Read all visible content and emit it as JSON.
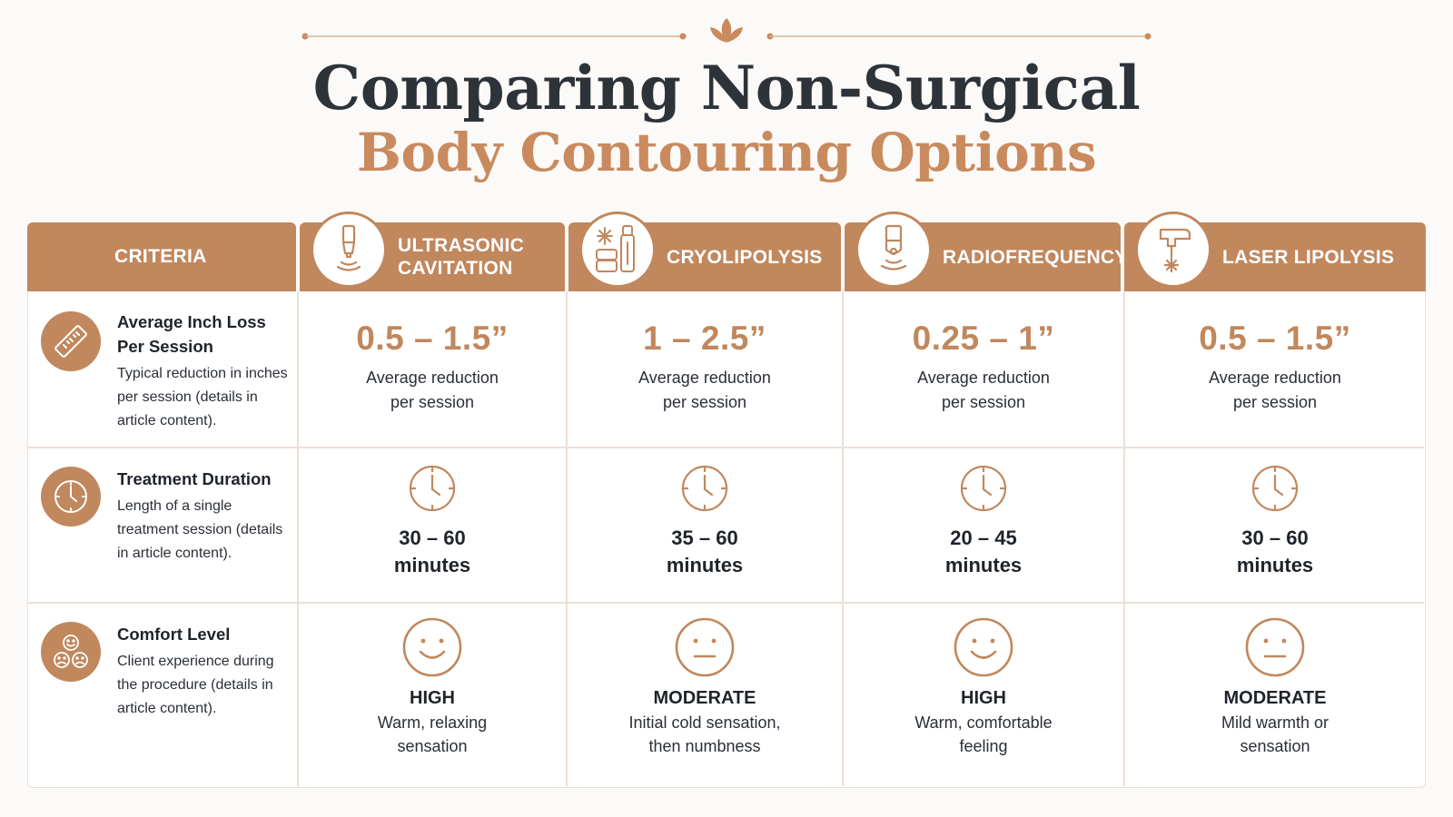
{
  "title": {
    "line1": "Comparing Non-Surgical",
    "line2": "Body Contouring Options"
  },
  "colors": {
    "accent": "#c1875d",
    "title_dark": "#2e333a",
    "title_accent": "#c98a5e",
    "border": "#eedfd3"
  },
  "header": {
    "criteria_label": "CRITERIA",
    "methods": [
      {
        "label": "ULTRASONIC CAVITATION",
        "icon": "ultrasound-probe-icon"
      },
      {
        "label": "CRYOLIPOLYSIS",
        "icon": "cryo-applicator-icon"
      },
      {
        "label": "RADIOFREQUENCY",
        "icon": "rf-probe-icon"
      },
      {
        "label": "LASER LIPOLYSIS",
        "icon": "laser-device-icon"
      }
    ]
  },
  "criteria": [
    {
      "title": "Average Inch Loss Per Session",
      "description": "Typical reduction in inches per session (details in article content).",
      "icon": "ruler-icon"
    },
    {
      "title": "Treatment Duration",
      "description": "Length of a single treatment session (details in article content).",
      "icon": "clock-icon"
    },
    {
      "title": "Comfort Level",
      "description": "Client experience during the procedure (details in article content).",
      "icon": "faces-icon"
    }
  ],
  "inch_loss": [
    {
      "value": "0.5 – 1.5”",
      "line1": "Average reduction",
      "line2": "per session"
    },
    {
      "value": "1 – 2.5”",
      "line1": "Average reduction",
      "line2": "per session"
    },
    {
      "value": "0.25 – 1”",
      "line1": "Average reduction",
      "line2": "per session"
    },
    {
      "value": "0.5 – 1.5”",
      "line1": "Average reduction",
      "line2": "per session"
    }
  ],
  "duration": [
    {
      "range": "30 – 60",
      "unit": "minutes",
      "icon": "clock-icon"
    },
    {
      "range": "35 – 60",
      "unit": "minutes",
      "icon": "clock-icon"
    },
    {
      "range": "20 – 45",
      "unit": "minutes",
      "icon": "clock-icon"
    },
    {
      "range": "30 – 60",
      "unit": "minutes",
      "icon": "clock-icon"
    }
  ],
  "comfort": [
    {
      "level": "HIGH",
      "line1": "Warm, relaxing",
      "line2": "sensation",
      "icon": "smile-face-icon"
    },
    {
      "level": "MODERATE",
      "line1": "Initial cold sensation,",
      "line2": "then numbness",
      "icon": "neutral-face-icon"
    },
    {
      "level": "HIGH",
      "line1": "Warm, comfortable",
      "line2": "feeling",
      "icon": "smile-face-icon"
    },
    {
      "level": "MODERATE",
      "line1": "Mild warmth or",
      "line2": "sensation",
      "icon": "neutral-face-icon"
    }
  ]
}
